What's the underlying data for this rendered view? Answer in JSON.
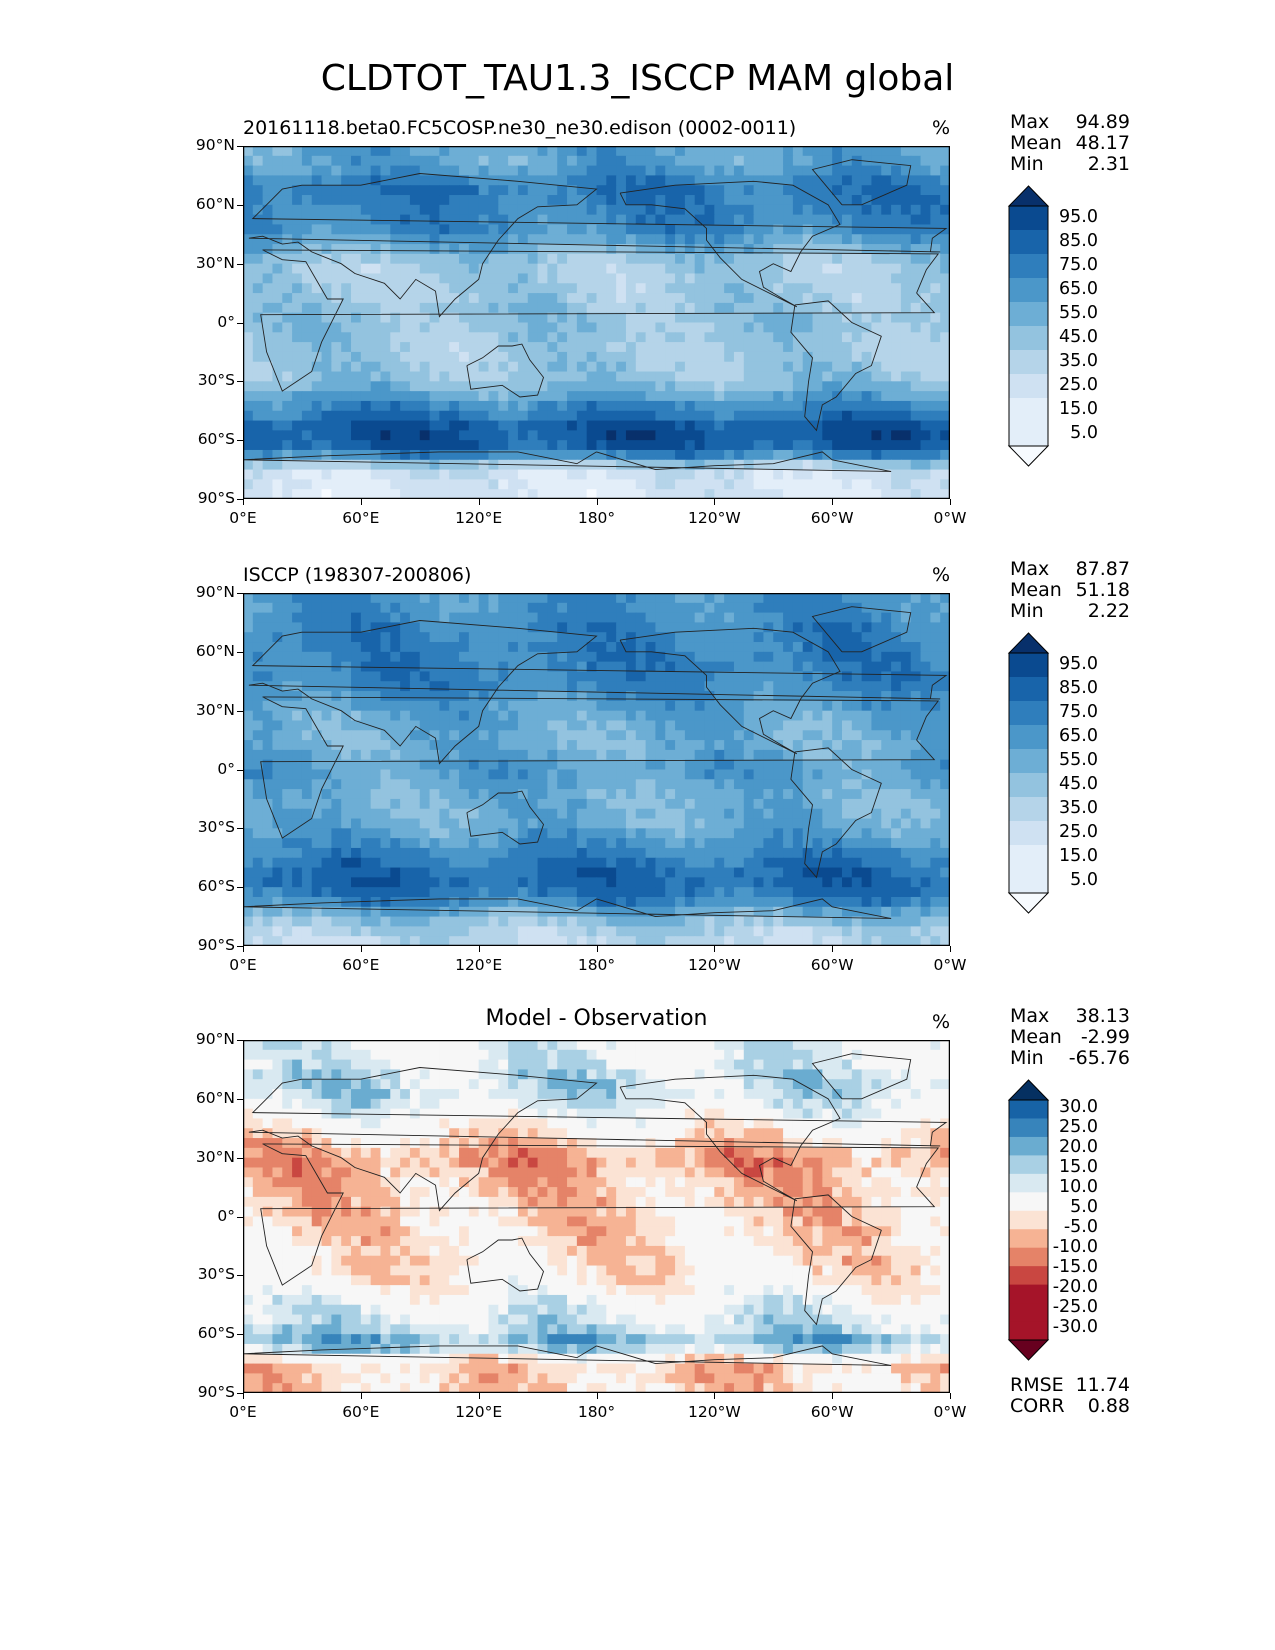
{
  "title": "CLDTOT_TAU1.3_ISCCP MAM global",
  "colors": {
    "blues": [
      "#f7fbff",
      "#e3eef9",
      "#cfe1f2",
      "#b5d4e9",
      "#93c3df",
      "#6daed5",
      "#4b97c9",
      "#2f7ebc",
      "#1864aa",
      "#0a4a90",
      "#08306b"
    ],
    "rdbu": [
      "#67001f",
      "#a51429",
      "#c94741",
      "#e58368",
      "#f6b394",
      "#fbe3d4",
      "#f7f7f7",
      "#d9e9f1",
      "#a9d0e4",
      "#6aacd0",
      "#3784bb",
      "#1763a6",
      "#053061"
    ],
    "land_outline": "#222222"
  },
  "chart_data": [
    {
      "type": "contour_map",
      "title": "20161118.beta0.FC5COSP.ne30_ne30.edison (0002-0011)",
      "units": "%",
      "stats": {
        "max": "94.89",
        "mean": "48.17",
        "min": "2.31"
      },
      "stat_labels": {
        "max": "Max",
        "mean": "Mean",
        "min": "Min"
      },
      "lat_ticks": [
        "90°N",
        "60°N",
        "30°N",
        "0°",
        "30°S",
        "60°S",
        "90°S"
      ],
      "lon_ticks": [
        "0°E",
        "60°E",
        "120°E",
        "180°",
        "120°W",
        "60°W",
        "0°W"
      ],
      "colorbar_levels": [
        "95.0",
        "85.0",
        "75.0",
        "65.0",
        "55.0",
        "45.0",
        "35.0",
        "25.0",
        "15.0",
        "5.0"
      ],
      "colorbar_extend": "both",
      "lat_profile": [
        {
          "lat": 80,
          "value": 55
        },
        {
          "lat": 70,
          "value": 72
        },
        {
          "lat": 60,
          "value": 70
        },
        {
          "lat": 45,
          "value": 62
        },
        {
          "lat": 30,
          "value": 35
        },
        {
          "lat": 15,
          "value": 35
        },
        {
          "lat": 0,
          "value": 42
        },
        {
          "lat": -15,
          "value": 35
        },
        {
          "lat": -30,
          "value": 40
        },
        {
          "lat": -45,
          "value": 70
        },
        {
          "lat": -55,
          "value": 88
        },
        {
          "lat": -65,
          "value": 80
        },
        {
          "lat": -75,
          "value": 22
        },
        {
          "lat": -85,
          "value": 15
        }
      ]
    },
    {
      "type": "contour_map",
      "title": "ISCCP (198307-200806)",
      "units": "%",
      "stats": {
        "max": "87.87",
        "mean": "51.18",
        "min": "2.22"
      },
      "stat_labels": {
        "max": "Max",
        "mean": "Mean",
        "min": "Min"
      },
      "lat_ticks": [
        "90°N",
        "60°N",
        "30°N",
        "0°",
        "30°S",
        "60°S",
        "90°S"
      ],
      "lon_ticks": [
        "0°E",
        "60°E",
        "120°E",
        "180°",
        "120°W",
        "60°W",
        "0°W"
      ],
      "colorbar_levels": [
        "95.0",
        "85.0",
        "75.0",
        "65.0",
        "55.0",
        "45.0",
        "35.0",
        "25.0",
        "15.0",
        "5.0"
      ],
      "colorbar_extend": "both",
      "lat_profile": [
        {
          "lat": 80,
          "value": 62
        },
        {
          "lat": 70,
          "value": 68
        },
        {
          "lat": 60,
          "value": 68
        },
        {
          "lat": 45,
          "value": 68
        },
        {
          "lat": 30,
          "value": 55
        },
        {
          "lat": 15,
          "value": 48
        },
        {
          "lat": 0,
          "value": 58
        },
        {
          "lat": -15,
          "value": 48
        },
        {
          "lat": -30,
          "value": 52
        },
        {
          "lat": -45,
          "value": 70
        },
        {
          "lat": -55,
          "value": 80
        },
        {
          "lat": -65,
          "value": 72
        },
        {
          "lat": -75,
          "value": 45
        },
        {
          "lat": -85,
          "value": 28
        }
      ]
    },
    {
      "type": "contour_map",
      "title": "Model - Observation",
      "units": "%",
      "stats": {
        "max": "38.13",
        "mean": "-2.99",
        "min": "-65.76"
      },
      "stat_labels": {
        "max": "Max",
        "mean": "Mean",
        "min": "Min"
      },
      "lat_ticks": [
        "90°N",
        "60°N",
        "30°N",
        "0°",
        "30°S",
        "60°S",
        "90°S"
      ],
      "lon_ticks": [
        "0°E",
        "60°E",
        "120°E",
        "180°",
        "120°W",
        "60°W",
        "0°W"
      ],
      "colorbar_levels": [
        "30.0",
        "25.0",
        "20.0",
        "15.0",
        "10.0",
        "5.0",
        "-5.0",
        "-10.0",
        "-15.0",
        "-20.0",
        "-25.0",
        "-30.0"
      ],
      "colorbar_extend": "both",
      "extra_stats": {
        "rmse_label": "RMSE",
        "rmse": "11.74",
        "corr_label": "CORR",
        "corr": "0.88"
      },
      "lat_profile": [
        {
          "lat": 80,
          "value": 5
        },
        {
          "lat": 70,
          "value": 10
        },
        {
          "lat": 60,
          "value": 8
        },
        {
          "lat": 45,
          "value": -3
        },
        {
          "lat": 30,
          "value": -14
        },
        {
          "lat": 15,
          "value": -10
        },
        {
          "lat": 0,
          "value": -8
        },
        {
          "lat": -15,
          "value": -7
        },
        {
          "lat": -30,
          "value": -5
        },
        {
          "lat": -45,
          "value": 4
        },
        {
          "lat": -55,
          "value": 8
        },
        {
          "lat": -65,
          "value": 18
        },
        {
          "lat": -75,
          "value": -10
        },
        {
          "lat": -85,
          "value": -8
        }
      ]
    }
  ]
}
